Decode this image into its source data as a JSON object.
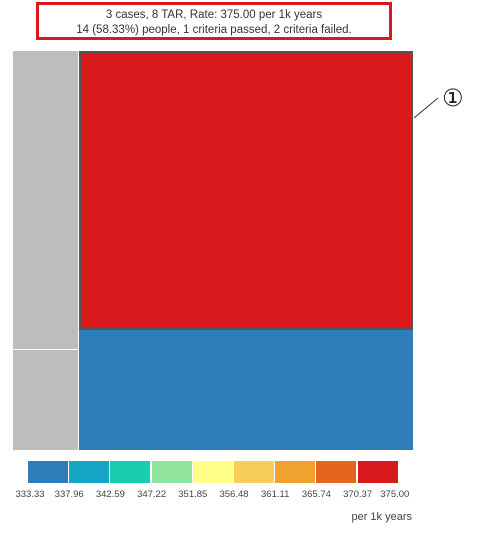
{
  "tooltip": {
    "line1": "3 cases, 8 TAR, Rate: 375.00 per 1k years",
    "line2": "14 (58.33%) people, 1 criteria passed, 2 criteria failed."
  },
  "callout": {
    "marker": "①"
  },
  "legend": {
    "swatches": [
      "#2e7cb8",
      "#17a5c6",
      "#19cdb0",
      "#8fe39b",
      "#ffff88",
      "#f8cd58",
      "#f0a22e",
      "#e5651f",
      "#d9191b"
    ],
    "ticks": [
      "333.33",
      "337.96",
      "342.59",
      "347.22",
      "351.85",
      "356.48",
      "361.11",
      "365.74",
      "370.37",
      "375.00"
    ],
    "unit": "per 1k years"
  }
}
